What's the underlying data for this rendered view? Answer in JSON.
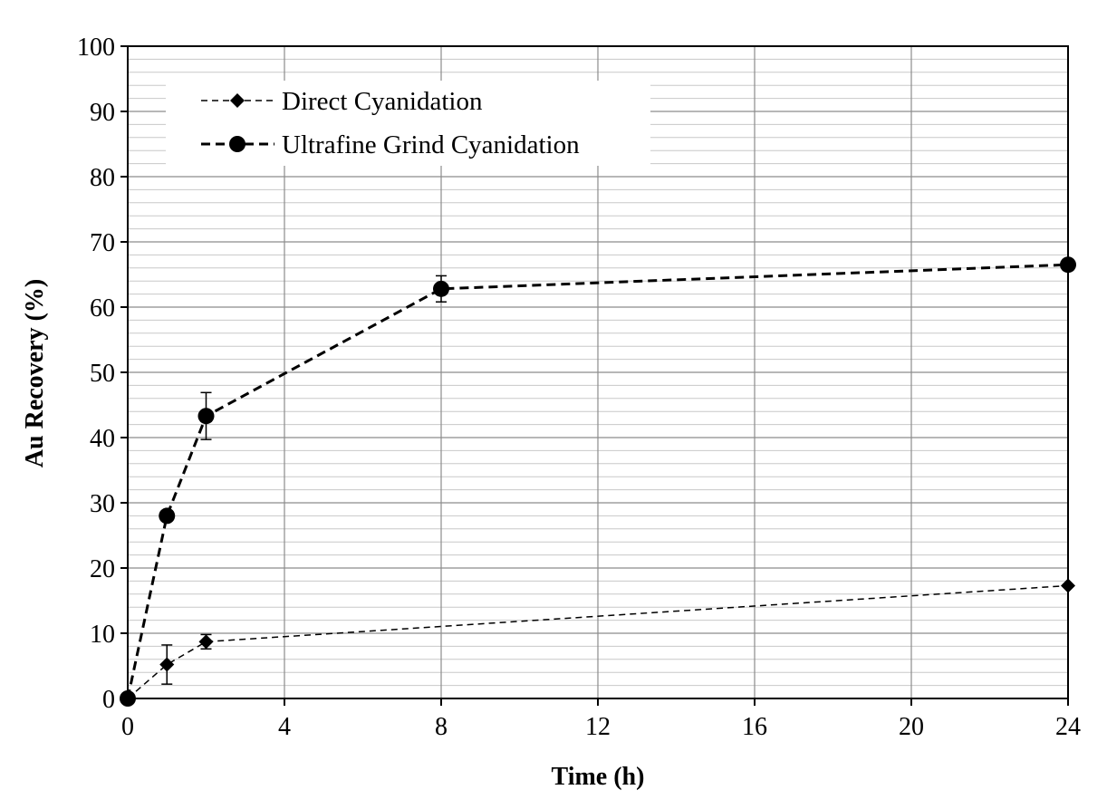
{
  "chart_data": {
    "type": "line",
    "title": "",
    "xlabel": "Time (h)",
    "ylabel": "Au Recovery (%)",
    "x_ticks": [
      0,
      4,
      8,
      12,
      16,
      20,
      24
    ],
    "y_ticks": [
      0,
      10,
      20,
      30,
      40,
      50,
      60,
      70,
      80,
      90,
      100
    ],
    "xlim": [
      0,
      24
    ],
    "ylim": [
      0,
      100
    ],
    "y_minor_step": 2,
    "grid": true,
    "legend_position": "top-left",
    "series": [
      {
        "name": "Direct Cyanidation",
        "marker": "diamond",
        "line_style": "dashed-thin",
        "color": "#000000",
        "x": [
          0,
          1,
          2,
          24
        ],
        "y": [
          0,
          5.2,
          8.7,
          17.3
        ],
        "error": [
          0,
          3.0,
          1.1,
          0
        ]
      },
      {
        "name": "Ultrafine Grind Cyanidation",
        "marker": "circle",
        "line_style": "dashed-thick",
        "color": "#000000",
        "x": [
          0,
          1,
          2,
          8,
          24
        ],
        "y": [
          0,
          28.0,
          43.3,
          62.8,
          66.5
        ],
        "error": [
          0,
          0,
          3.6,
          2.0,
          0
        ]
      }
    ]
  }
}
